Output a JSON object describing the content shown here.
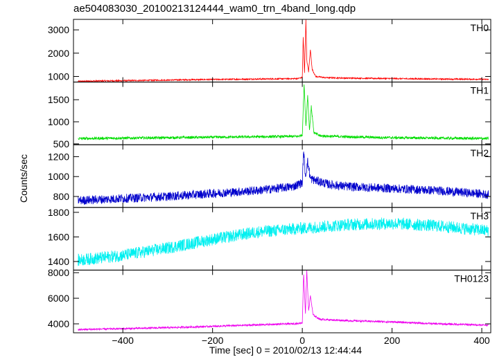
{
  "chart_data": {
    "type": "line",
    "title": "ae504083030_20100213124444_wam0_trn_4band_long.qdp",
    "xlabel": "Time [sec] 0 = 2010/02/13 12:44:44",
    "ylabel": "Counts/sec",
    "xlim": [
      -510,
      420
    ],
    "xticks": [
      -400,
      -200,
      0,
      200,
      400
    ],
    "grid": false,
    "panels": [
      {
        "name": "TH0",
        "color": "#ff0000",
        "ylim": [
          760,
          3450
        ],
        "yticks": [
          1000,
          2000,
          3000
        ],
        "points": [
          [
            -500,
            790
          ],
          [
            -450,
            810
          ],
          [
            -400,
            820
          ],
          [
            -350,
            830
          ],
          [
            -300,
            845
          ],
          [
            -250,
            860
          ],
          [
            -200,
            870
          ],
          [
            -150,
            880
          ],
          [
            -100,
            890
          ],
          [
            -50,
            900
          ],
          [
            -10,
            910
          ],
          [
            0,
            960
          ],
          [
            2,
            2700
          ],
          [
            5,
            1150
          ],
          [
            8,
            3450
          ],
          [
            10,
            1700
          ],
          [
            14,
            1200
          ],
          [
            18,
            2150
          ],
          [
            22,
            1300
          ],
          [
            30,
            1000
          ],
          [
            50,
            950
          ],
          [
            100,
            930
          ],
          [
            200,
            910
          ],
          [
            300,
            890
          ],
          [
            400,
            880
          ],
          [
            415,
            870
          ]
        ],
        "noise": 28
      },
      {
        "name": "TH1",
        "color": "#00dd00",
        "ylim": [
          480,
          1900
        ],
        "yticks": [
          500,
          1000,
          1500
        ],
        "points": [
          [
            -500,
            620
          ],
          [
            -400,
            630
          ],
          [
            -300,
            640
          ],
          [
            -200,
            650
          ],
          [
            -100,
            660
          ],
          [
            -10,
            670
          ],
          [
            0,
            700
          ],
          [
            4,
            1850
          ],
          [
            8,
            900
          ],
          [
            12,
            1600
          ],
          [
            16,
            800
          ],
          [
            20,
            1350
          ],
          [
            26,
            750
          ],
          [
            40,
            680
          ],
          [
            100,
            660
          ],
          [
            200,
            640
          ],
          [
            300,
            630
          ],
          [
            415,
            620
          ]
        ],
        "noise": 30
      },
      {
        "name": "TH2",
        "color": "#0000cc",
        "ylim": [
          690,
          1320
        ],
        "yticks": [
          800,
          1000,
          1200
        ],
        "points": [
          [
            -500,
            760
          ],
          [
            -400,
            780
          ],
          [
            -300,
            800
          ],
          [
            -200,
            830
          ],
          [
            -100,
            860
          ],
          [
            -20,
            900
          ],
          [
            0,
            940
          ],
          [
            3,
            1260
          ],
          [
            7,
            1000
          ],
          [
            12,
            1150
          ],
          [
            18,
            980
          ],
          [
            30,
            960
          ],
          [
            60,
            920
          ],
          [
            100,
            900
          ],
          [
            200,
            880
          ],
          [
            300,
            860
          ],
          [
            415,
            820
          ]
        ],
        "noise": 45
      },
      {
        "name": "TH3",
        "color": "#00f0f0",
        "ylim": [
          1330,
          1840
        ],
        "yticks": [
          1400,
          1600,
          1800
        ],
        "points": [
          [
            -500,
            1410
          ],
          [
            -400,
            1450
          ],
          [
            -300,
            1510
          ],
          [
            -200,
            1580
          ],
          [
            -100,
            1640
          ],
          [
            0,
            1670
          ],
          [
            100,
            1700
          ],
          [
            200,
            1710
          ],
          [
            300,
            1690
          ],
          [
            415,
            1650
          ]
        ],
        "noise": 50
      },
      {
        "name": "TH0123",
        "color": "#ee00ee",
        "ylim": [
          3300,
          8200
        ],
        "yticks": [
          4000,
          6000,
          8000
        ],
        "points": [
          [
            -500,
            3550
          ],
          [
            -400,
            3620
          ],
          [
            -300,
            3700
          ],
          [
            -200,
            3800
          ],
          [
            -100,
            3920
          ],
          [
            -10,
            4020
          ],
          [
            0,
            4100
          ],
          [
            3,
            7900
          ],
          [
            7,
            4800
          ],
          [
            10,
            8200
          ],
          [
            14,
            5000
          ],
          [
            18,
            6200
          ],
          [
            24,
            4700
          ],
          [
            40,
            4350
          ],
          [
            100,
            4250
          ],
          [
            200,
            4150
          ],
          [
            300,
            4000
          ],
          [
            415,
            3900
          ]
        ],
        "noise": 70
      }
    ]
  }
}
